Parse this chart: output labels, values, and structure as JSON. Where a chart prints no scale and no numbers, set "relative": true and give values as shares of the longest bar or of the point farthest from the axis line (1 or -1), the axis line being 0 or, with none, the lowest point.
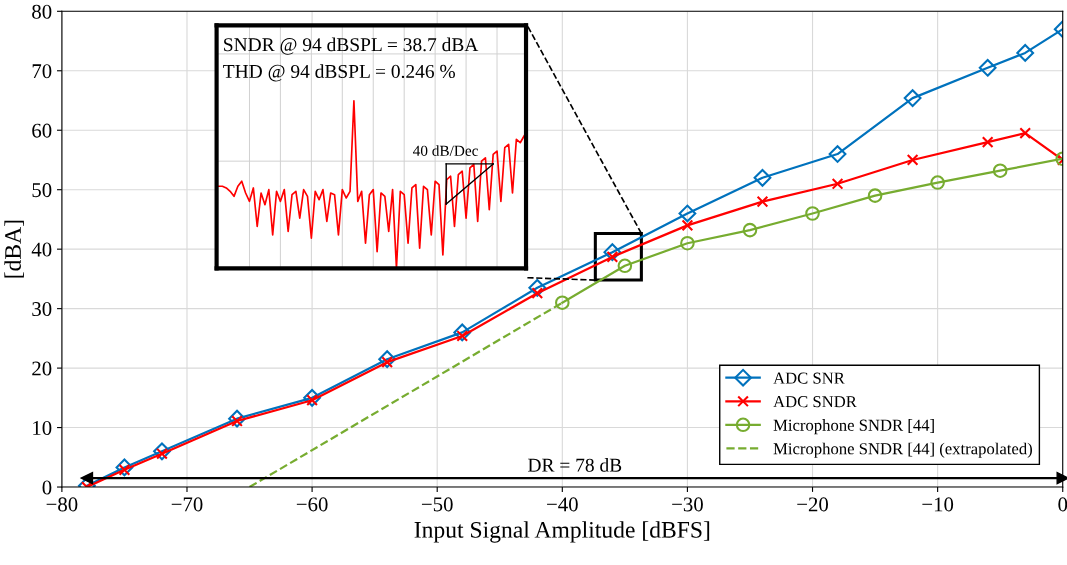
{
  "chart_data": [
    {
      "type": "line",
      "xlabel": "Input Signal Amplitude [dBFS]",
      "ylabel": "[dBA]",
      "xlim": [
        -80,
        0
      ],
      "ylim": [
        0,
        80
      ],
      "xticks": [
        -80,
        -70,
        -60,
        -50,
        -40,
        -30,
        -20,
        -10,
        0
      ],
      "yticks": [
        0,
        10,
        20,
        30,
        40,
        50,
        60,
        70,
        80
      ],
      "grid": true,
      "legend": "bottom right",
      "series": [
        {
          "name": "ADC SNR",
          "color": "#0072bd",
          "marker": "diamond",
          "x": [
            -78,
            -75,
            -72,
            -66,
            -60,
            -54,
            -48,
            -42,
            -36,
            -30,
            -24,
            -18,
            -12,
            -6,
            -3,
            0
          ],
          "values": [
            0.2,
            3.3,
            6,
            11.5,
            15,
            21.5,
            26,
            33.5,
            39.5,
            46,
            52,
            56,
            65.4,
            70.5,
            73,
            77
          ]
        },
        {
          "name": "ADC SNDR",
          "color": "#ff0000",
          "marker": "cross",
          "x": [
            -78,
            -75,
            -72,
            -66,
            -60,
            -54,
            -48,
            -42,
            -36,
            -30,
            -24,
            -18,
            -12,
            -6,
            -3,
            0
          ],
          "values": [
            0,
            2.9,
            5.6,
            11.1,
            14.6,
            21,
            25.4,
            32.6,
            38.7,
            44,
            48,
            51,
            55,
            58,
            59.5,
            55
          ]
        },
        {
          "name": "Microphone SNDR [44]",
          "color": "#77ac30",
          "marker": "circle",
          "x": [
            -40,
            -35,
            -30,
            -25,
            -20,
            -15,
            -10,
            -5,
            0
          ],
          "values": [
            31,
            37.2,
            41,
            43.2,
            46,
            49,
            51.2,
            53.2,
            55.2
          ]
        },
        {
          "name": "Microphone SNDR [44] (extrapolated)",
          "color": "#77ac30",
          "marker": "none",
          "line_style": "dashed",
          "x": [
            -65,
            -40
          ],
          "values": [
            0,
            31
          ]
        },
        {
          "color": "#000000",
          "marker": "triangle",
          "x": [
            -78,
            0
          ],
          "values": [
            1.5,
            1.5
          ]
        }
      ],
      "annotations": [
        {
          "text": "DR = 78 dB",
          "x": -39,
          "y": 1.5
        }
      ]
    },
    {
      "type": "line",
      "relative": true,
      "grid": true,
      "categories": [
        null,
        null,
        null,
        null,
        null,
        null,
        null,
        null,
        null,
        null,
        null,
        null,
        null,
        null,
        null,
        null,
        null,
        null,
        null,
        null,
        null,
        null,
        null,
        null,
        null,
        null,
        null,
        null,
        null,
        null,
        null,
        null,
        null,
        null,
        null,
        null,
        null,
        null,
        null,
        null,
        null,
        null,
        null,
        null,
        null,
        null,
        null,
        null,
        null,
        null,
        null,
        null,
        null,
        null,
        null,
        null,
        null,
        null,
        null,
        null,
        null,
        null,
        null,
        null,
        null,
        null,
        null,
        null,
        null,
        null,
        null,
        null,
        null,
        null,
        null,
        null,
        null,
        null,
        null,
        null
      ],
      "series": [
        {
          "color": "#ff0000",
          "values": [
            0.49,
            0.49,
            0.48,
            0.46,
            0.43,
            0.49,
            0.52,
            0.45,
            0.4,
            0.48,
            0.25,
            0.45,
            0.38,
            0.47,
            0.2,
            0.46,
            0.4,
            0.47,
            0.22,
            0.44,
            0.46,
            0.3,
            0.47,
            0.43,
            0.18,
            0.46,
            0.41,
            0.47,
            0.28,
            0.45,
            0.44,
            0.2,
            0.47,
            0.42,
            0.46,
            1.0,
            0.4,
            0.46,
            0.15,
            0.44,
            0.47,
            0.1,
            0.45,
            0.43,
            0.22,
            0.47,
            0.0,
            0.46,
            0.44,
            0.15,
            0.48,
            0.5,
            0.12,
            0.49,
            0.47,
            0.2,
            0.52,
            0.5,
            0.08,
            0.53,
            0.55,
            0.25,
            0.56,
            0.58,
            0.3,
            0.6,
            0.62,
            0.28,
            0.64,
            0.66,
            0.35,
            0.68,
            0.7,
            0.4,
            0.72,
            0.74,
            0.45,
            0.77,
            0.75,
            0.79
          ]
        }
      ],
      "annotations": [
        "SNDR @ 94 dBSPL = 38.7 dBA",
        "THD @ 94 dBSPL = 0.246 %",
        "40 dB/Dec"
      ]
    }
  ]
}
